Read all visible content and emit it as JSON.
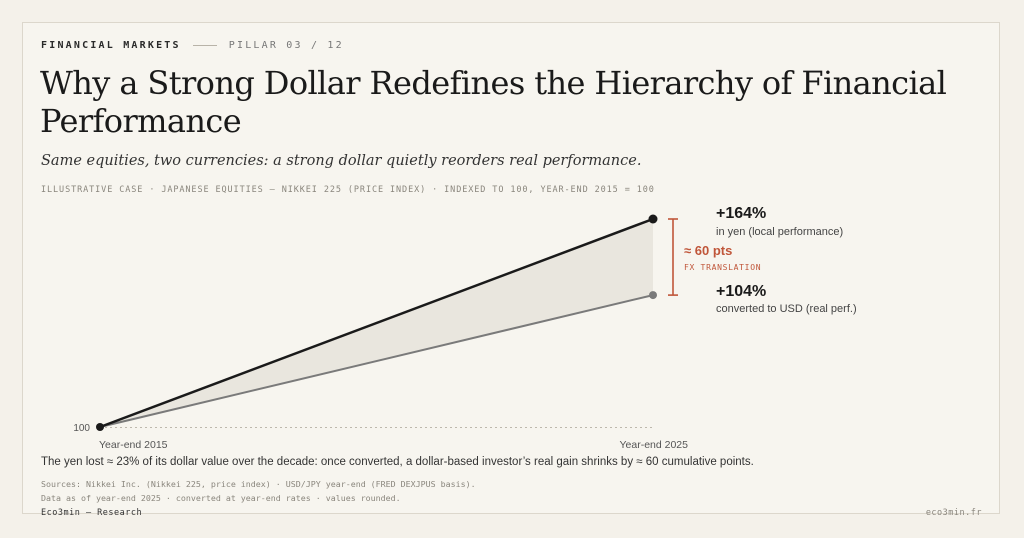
{
  "header": {
    "category": "FINANCIAL MARKETS",
    "pillar": "PILLAR 03 / 12"
  },
  "title": "Why a Strong Dollar Redefines the Hierarchy of Financial Performance",
  "subtitle": "Same equities, two currencies: a strong dollar quietly reorders real performance.",
  "caption": "ILLUSTRATIVE CASE · JAPANESE EQUITIES — NIKKEI 225 (PRICE INDEX) · INDEXED TO 100, YEAR-END 2015 = 100",
  "chart_data": {
    "type": "line",
    "x": [
      "Year-end 2015",
      "Year-end 2025"
    ],
    "ytick": "100",
    "series": [
      {
        "values": [
          100,
          264
        ],
        "color": "#1a1a1a"
      },
      {
        "values": [
          100,
          204
        ],
        "color": "#7a7a7a"
      }
    ],
    "gap_fill": "#e9e6de",
    "ylim": [
      100,
      264
    ],
    "annotations": {
      "yen": {
        "value": "+164%",
        "note": "in yen (local performance)"
      },
      "usd": {
        "value": "+104%",
        "note": "converted to USD (real perf.)"
      },
      "gap": {
        "value": "≈ 60 pts",
        "label": "FX TRANSLATION",
        "color": "#c0563a"
      }
    }
  },
  "summary": "The yen lost ≈ 23% of its dollar value over the decade: once converted, a dollar-based investor’s real gain shrinks by ≈ 60 cumulative points.",
  "sources": {
    "line1": "Sources: Nikkei Inc. (Nikkei 225, price index) · USD/JPY year-end (FRED DEXJPUS basis).",
    "line2": "Data as of year-end 2025 · converted at year-end rates · values rounded."
  },
  "footer": {
    "brand": "Eco3min — Research",
    "site": "eco3min.fr"
  }
}
